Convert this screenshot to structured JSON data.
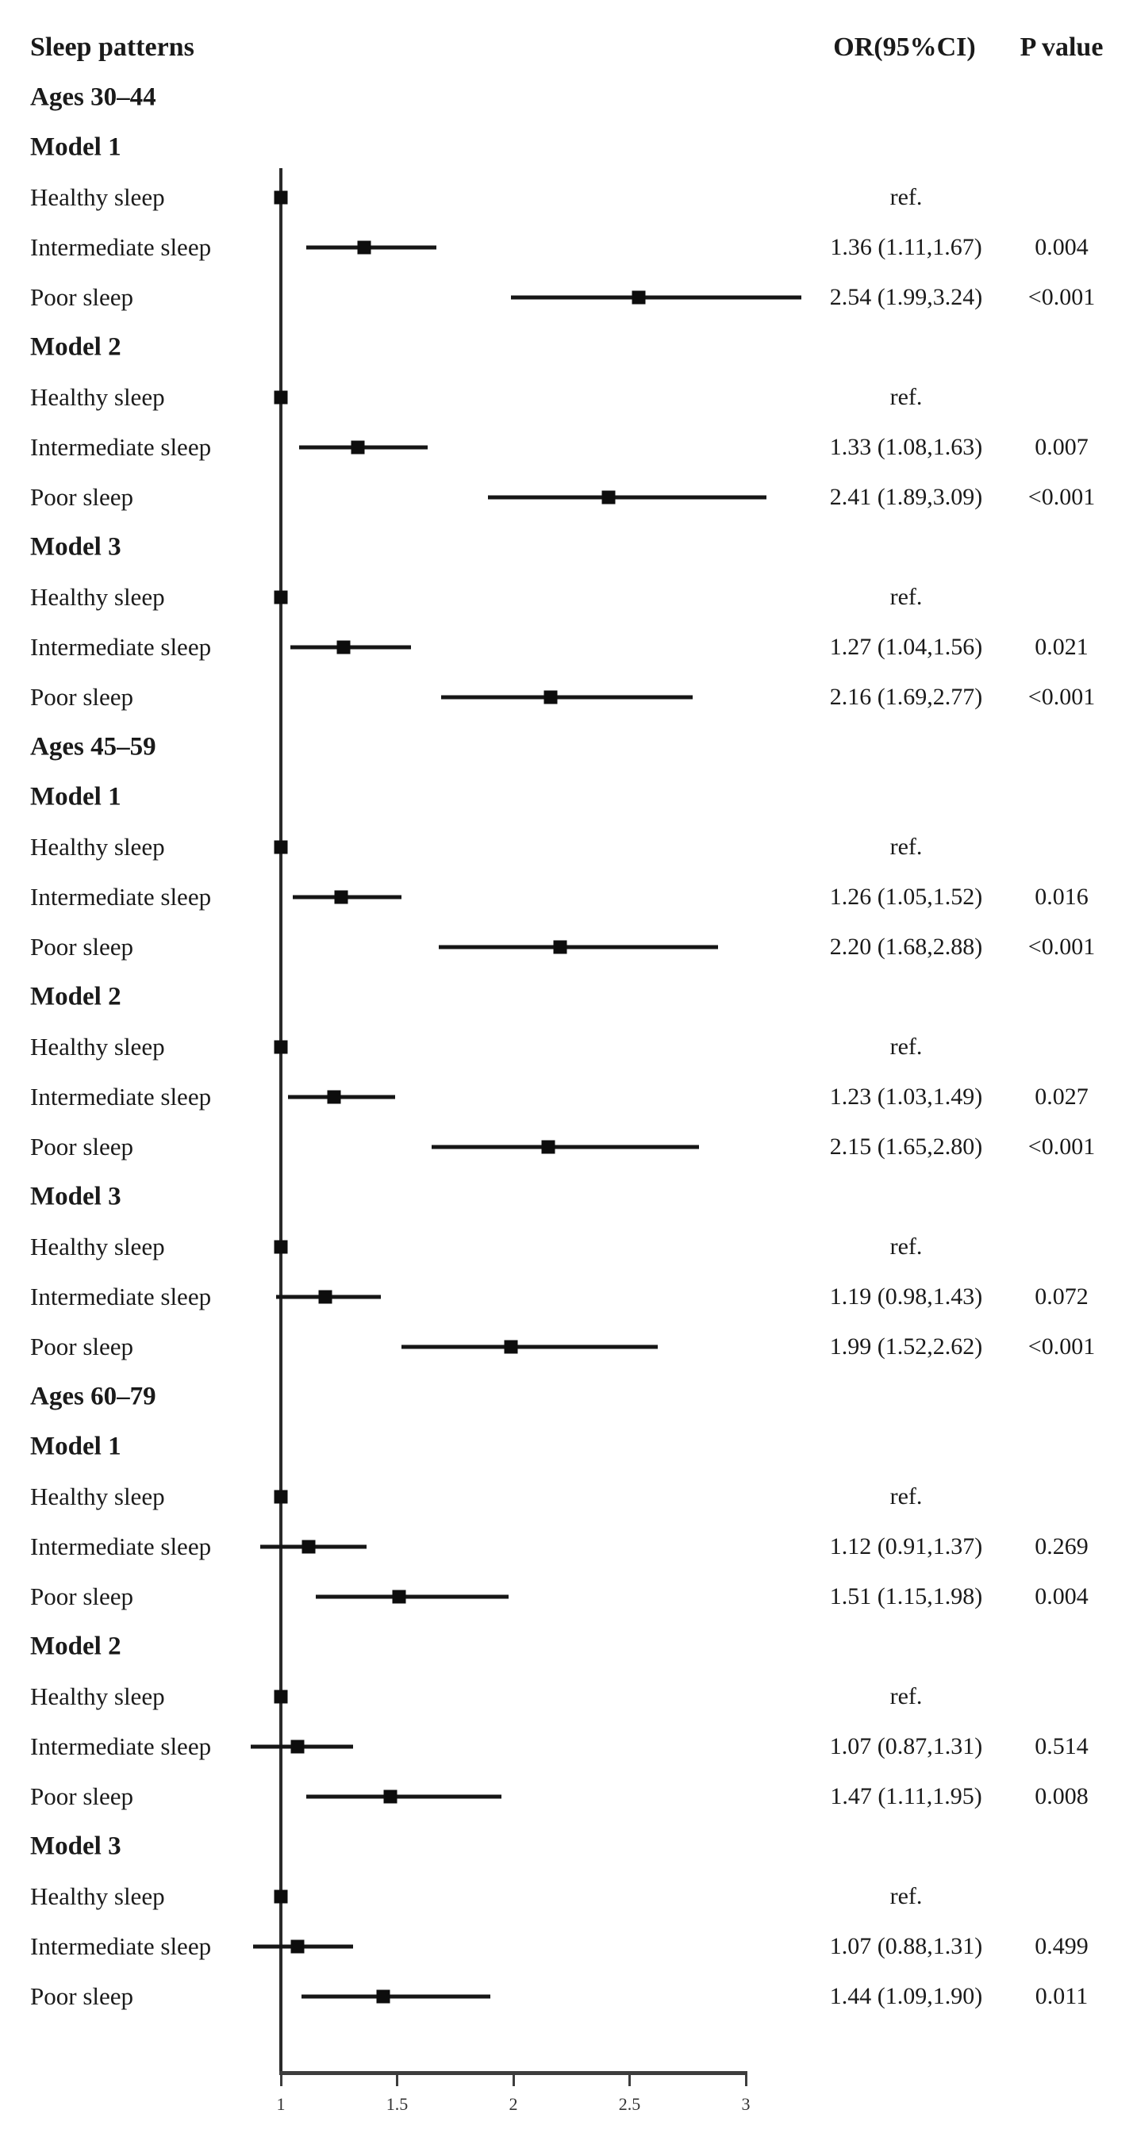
{
  "page": {
    "background": "#ffffff",
    "text_color": "#1a1a1a",
    "line_color": "#2a2a2a"
  },
  "header": {
    "sleep_col": "Sleep patterns",
    "or_col": "OR(95%CI)",
    "p_col": "P value"
  },
  "chart_data": {
    "type": "forest",
    "title": "",
    "x_axis": {
      "range": [
        1,
        3
      ],
      "ticks": [
        1,
        1.5,
        2,
        2.5,
        3
      ],
      "tick_labels": [
        "1",
        "1.5",
        "2",
        "2.5",
        "3"
      ],
      "reference_value": 1
    },
    "columns": [
      "Sleep patterns",
      "OR(95%CI)",
      "P value"
    ],
    "groups": [
      {
        "label": "Ages 30–44",
        "models": [
          {
            "label": "Model 1",
            "rows": [
              {
                "label": "Healthy sleep",
                "ref": true,
                "or": 1.0,
                "or_text": "ref.",
                "p": ""
              },
              {
                "label": "Intermediate sleep",
                "or": 1.36,
                "lo": 1.11,
                "hi": 1.67,
                "or_text": "1.36 (1.11,1.67)",
                "p": "0.004"
              },
              {
                "label": "Poor sleep",
                "or": 2.54,
                "lo": 1.99,
                "hi": 3.24,
                "or_text": "2.54 (1.99,3.24)",
                "p": "<0.001"
              }
            ]
          },
          {
            "label": "Model 2",
            "rows": [
              {
                "label": "Healthy sleep",
                "ref": true,
                "or": 1.0,
                "or_text": "ref.",
                "p": ""
              },
              {
                "label": "Intermediate sleep",
                "or": 1.33,
                "lo": 1.08,
                "hi": 1.63,
                "or_text": "1.33 (1.08,1.63)",
                "p": "0.007"
              },
              {
                "label": "Poor sleep",
                "or": 2.41,
                "lo": 1.89,
                "hi": 3.09,
                "or_text": "2.41 (1.89,3.09)",
                "p": "<0.001"
              }
            ]
          },
          {
            "label": "Model 3",
            "rows": [
              {
                "label": "Healthy sleep",
                "ref": true,
                "or": 1.0,
                "or_text": "ref.",
                "p": ""
              },
              {
                "label": "Intermediate sleep",
                "or": 1.27,
                "lo": 1.04,
                "hi": 1.56,
                "or_text": "1.27 (1.04,1.56)",
                "p": "0.021"
              },
              {
                "label": "Poor sleep",
                "or": 2.16,
                "lo": 1.69,
                "hi": 2.77,
                "or_text": "2.16 (1.69,2.77)",
                "p": "<0.001"
              }
            ]
          }
        ]
      },
      {
        "label": "Ages 45–59",
        "models": [
          {
            "label": "Model 1",
            "rows": [
              {
                "label": "Healthy sleep",
                "ref": true,
                "or": 1.0,
                "or_text": "ref.",
                "p": ""
              },
              {
                "label": "Intermediate sleep",
                "or": 1.26,
                "lo": 1.05,
                "hi": 1.52,
                "or_text": "1.26 (1.05,1.52)",
                "p": "0.016"
              },
              {
                "label": "Poor sleep",
                "or": 2.2,
                "lo": 1.68,
                "hi": 2.88,
                "or_text": "2.20 (1.68,2.88)",
                "p": "<0.001"
              }
            ]
          },
          {
            "label": "Model 2",
            "rows": [
              {
                "label": "Healthy sleep",
                "ref": true,
                "or": 1.0,
                "or_text": "ref.",
                "p": ""
              },
              {
                "label": "Intermediate sleep",
                "or": 1.23,
                "lo": 1.03,
                "hi": 1.49,
                "or_text": "1.23 (1.03,1.49)",
                "p": "0.027"
              },
              {
                "label": "Poor sleep",
                "or": 2.15,
                "lo": 1.65,
                "hi": 2.8,
                "or_text": "2.15 (1.65,2.80)",
                "p": "<0.001"
              }
            ]
          },
          {
            "label": "Model 3",
            "rows": [
              {
                "label": "Healthy sleep",
                "ref": true,
                "or": 1.0,
                "or_text": "ref.",
                "p": ""
              },
              {
                "label": "Intermediate sleep",
                "or": 1.19,
                "lo": 0.98,
                "hi": 1.43,
                "or_text": "1.19 (0.98,1.43)",
                "p": "0.072"
              },
              {
                "label": "Poor sleep",
                "or": 1.99,
                "lo": 1.52,
                "hi": 2.62,
                "or_text": "1.99 (1.52,2.62)",
                "p": "<0.001"
              }
            ]
          }
        ]
      },
      {
        "label": "Ages 60–79",
        "models": [
          {
            "label": "Model 1",
            "rows": [
              {
                "label": "Healthy sleep",
                "ref": true,
                "or": 1.0,
                "or_text": "ref.",
                "p": ""
              },
              {
                "label": "Intermediate sleep",
                "or": 1.12,
                "lo": 0.91,
                "hi": 1.37,
                "or_text": "1.12 (0.91,1.37)",
                "p": "0.269"
              },
              {
                "label": "Poor sleep",
                "or": 1.51,
                "lo": 1.15,
                "hi": 1.98,
                "or_text": "1.51 (1.15,1.98)",
                "p": "0.004"
              }
            ]
          },
          {
            "label": "Model 2",
            "rows": [
              {
                "label": "Healthy sleep",
                "ref": true,
                "or": 1.0,
                "or_text": "ref.",
                "p": ""
              },
              {
                "label": "Intermediate sleep",
                "or": 1.07,
                "lo": 0.87,
                "hi": 1.31,
                "or_text": "1.07 (0.87,1.31)",
                "p": "0.514"
              },
              {
                "label": "Poor sleep",
                "or": 1.47,
                "lo": 1.11,
                "hi": 1.95,
                "or_text": "1.47 (1.11,1.95)",
                "p": "0.008"
              }
            ]
          },
          {
            "label": "Model 3",
            "rows": [
              {
                "label": "Healthy sleep",
                "ref": true,
                "or": 1.0,
                "or_text": "ref.",
                "p": ""
              },
              {
                "label": "Intermediate sleep",
                "or": 1.07,
                "lo": 0.88,
                "hi": 1.31,
                "or_text": "1.07 (0.88,1.31)",
                "p": "0.499"
              },
              {
                "label": "Poor sleep",
                "or": 1.44,
                "lo": 1.09,
                "hi": 1.9,
                "or_text": "1.44 (1.09,1.90)",
                "p": "0.011"
              }
            ]
          }
        ]
      }
    ]
  }
}
